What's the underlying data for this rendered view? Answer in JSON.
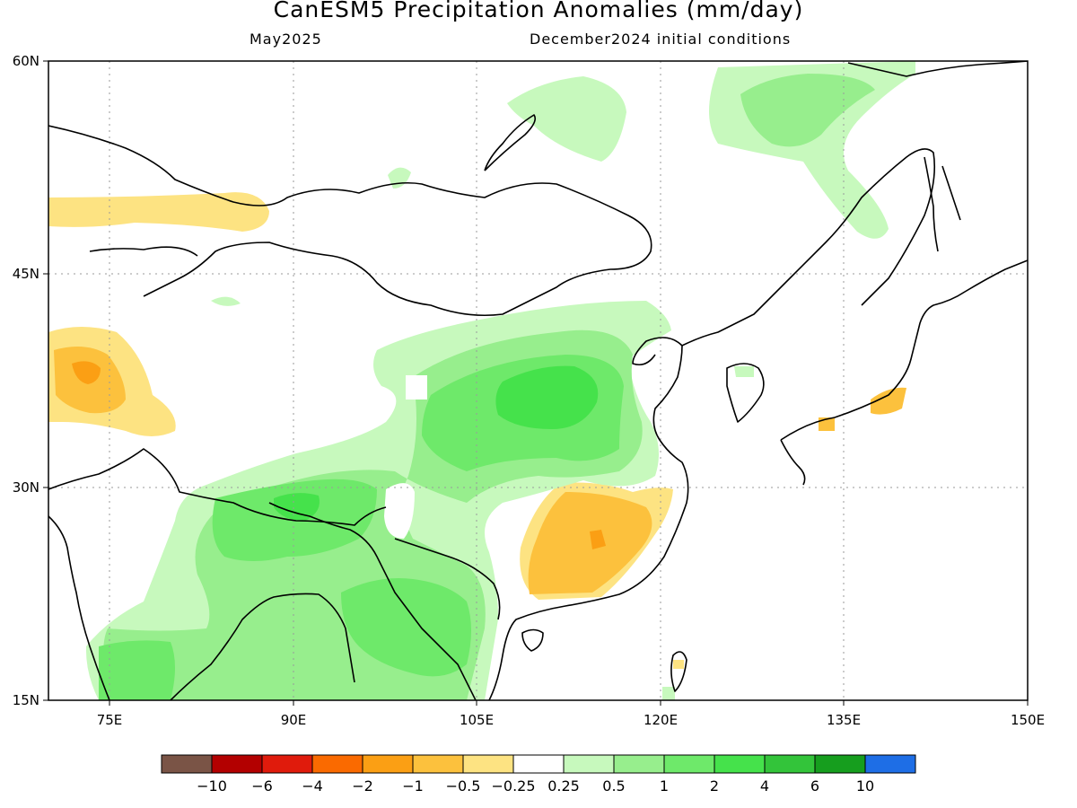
{
  "title": "CanESM5 Precipitation Anomalies (mm/day)",
  "subtitle_left": "May2025",
  "subtitle_right": "December2024 initial conditions",
  "axes": {
    "lat_labels": [
      "60N",
      "45N",
      "30N",
      "15N"
    ],
    "lon_labels": [
      "75E",
      "90E",
      "105E",
      "120E",
      "135E",
      "150E"
    ]
  },
  "colorbar": {
    "colors": [
      "#7a5446",
      "#b30000",
      "#e01b0c",
      "#fa6a00",
      "#fb9f14",
      "#fcc13d",
      "#fde382",
      "#ffffff",
      "#c7f9bd",
      "#97ee8d",
      "#6ee96a",
      "#45e24b",
      "#33c43a",
      "#169e1e",
      "#1e6ee6"
    ],
    "tick_labels": [
      "-10",
      "-6",
      "-4",
      "-2",
      "-1",
      "-0.5",
      "-0.25",
      "0.25",
      "0.5",
      "1",
      "2",
      "4",
      "6",
      "10"
    ]
  },
  "colors": {
    "dry_weak": "#fde382",
    "dry_mid": "#fcc13d",
    "dry_strong": "#fb9f14",
    "wet_weak": "#c7f9bd",
    "wet_mid": "#97ee8d",
    "wet_strong": "#6ee96a",
    "wet_max": "#45e24b"
  }
}
